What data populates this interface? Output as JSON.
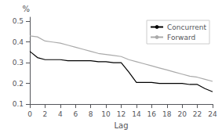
{
  "chart_data": {
    "type": "line",
    "xlabel": "Lag",
    "ylabel": "%",
    "x": [
      0,
      1,
      2,
      3,
      4,
      5,
      6,
      7,
      8,
      9,
      10,
      11,
      12,
      13,
      14,
      15,
      16,
      17,
      18,
      19,
      20,
      21,
      22,
      23,
      24
    ],
    "series": [
      {
        "name": "Concurrent",
        "color": "#000000",
        "values": [
          0.355,
          0.325,
          0.315,
          0.315,
          0.315,
          0.31,
          0.31,
          0.31,
          0.31,
          0.305,
          0.305,
          0.3,
          0.3,
          0.255,
          0.205,
          0.205,
          0.205,
          0.2,
          0.2,
          0.2,
          0.2,
          0.195,
          0.195,
          0.175,
          0.16
        ]
      },
      {
        "name": "Forward",
        "color": "#aaaaaa",
        "values": [
          0.43,
          0.425,
          0.405,
          0.4,
          0.395,
          0.385,
          0.375,
          0.365,
          0.355,
          0.345,
          0.34,
          0.335,
          0.33,
          0.315,
          0.305,
          0.295,
          0.285,
          0.275,
          0.265,
          0.255,
          0.245,
          0.235,
          0.23,
          0.22,
          0.21
        ]
      }
    ],
    "xlim": [
      0,
      24
    ],
    "ylim": [
      0.1,
      0.52
    ],
    "xticks": [
      0,
      2,
      4,
      6,
      8,
      10,
      12,
      14,
      16,
      18,
      20,
      22,
      24
    ],
    "yticks": [
      0.1,
      0.2,
      0.3,
      0.4,
      0.5
    ],
    "grid": false,
    "legend": "upper right"
  }
}
